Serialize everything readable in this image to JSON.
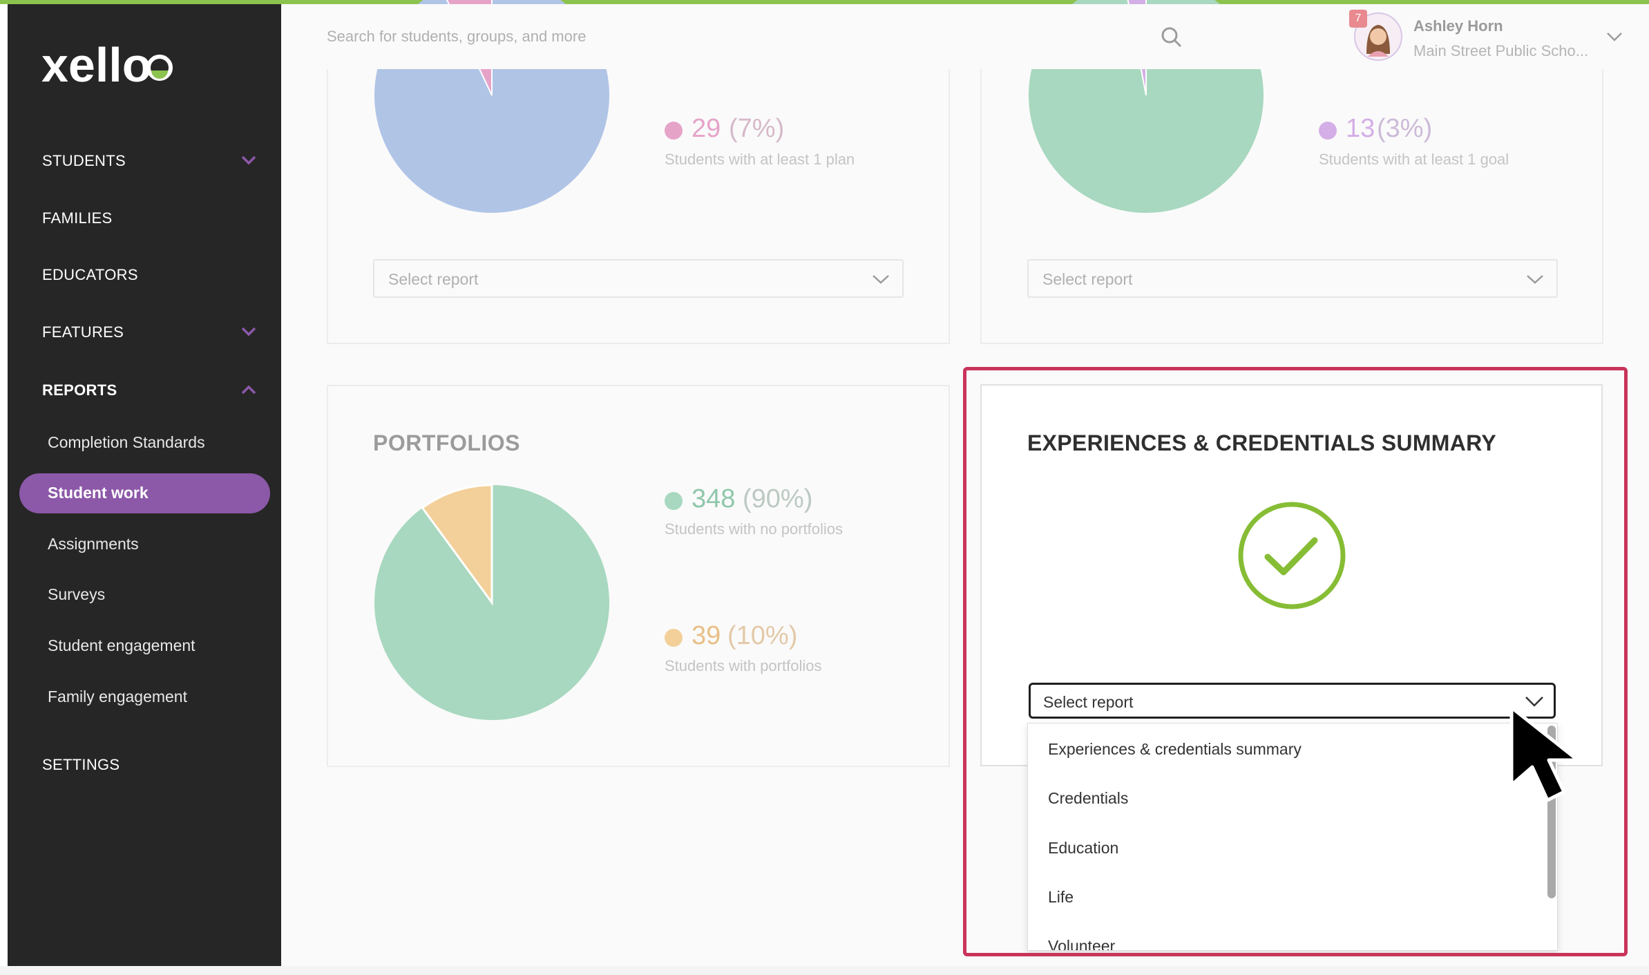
{
  "brand": {
    "logo_text": "xello",
    "accent_color": "#8cc34f"
  },
  "sidebar": {
    "items": [
      {
        "label": "STUDENTS",
        "has_chevron": true,
        "chevron": "down"
      },
      {
        "label": "FAMILIES"
      },
      {
        "label": "EDUCATORS"
      },
      {
        "label": "FEATURES",
        "has_chevron": true,
        "chevron": "down"
      },
      {
        "label": "REPORTS",
        "has_chevron": true,
        "chevron": "up",
        "active": true
      }
    ],
    "report_subitems": [
      "Completion Standards",
      "Student work",
      "Assignments",
      "Surveys",
      "Student engagement",
      "Family engagement"
    ],
    "active_subitem": "Student work",
    "settings_label": "SETTINGS",
    "active_color": "#8c58a8"
  },
  "header": {
    "search_placeholder": "Search for students, groups, and more",
    "user": {
      "name": "Ashley Horn",
      "school": "Main Street Public Scho...",
      "notification_count": "7"
    }
  },
  "cards": {
    "plans": {
      "legend": [
        {
          "num": "29",
          "pct": "(7%)",
          "desc": "Students with at least 1 plan",
          "color": "#e6a3c8"
        }
      ],
      "select_label": "Select report"
    },
    "goals": {
      "legend": [
        {
          "num": "13",
          "pct": "(3%)",
          "desc": "Students with at least 1 goal",
          "color": "#d4aee6"
        }
      ],
      "select_label": "Select report"
    },
    "portfolios": {
      "title": "PORTFOLIOS",
      "legend": [
        {
          "num": "348",
          "pct": "(90%)",
          "desc": "Students with no portfolios",
          "color": "#a8d8bf"
        },
        {
          "num": "39",
          "pct": "(10%)",
          "desc": "Students with portfolios",
          "color": "#f3d09a"
        }
      ]
    },
    "experiences": {
      "title": "EXPERIENCES & CREDENTIALS SUMMARY",
      "select_label": "Select report",
      "dropdown_options": [
        "Experiences & credentials summary",
        "Credentials",
        "Education",
        "Life",
        "Volunteer"
      ],
      "check_color": "#86bd35"
    }
  },
  "chart_data": [
    {
      "type": "pie",
      "values": [
        93,
        7
      ],
      "colors": [
        "#b0c4e6",
        "#e6a3c8"
      ]
    },
    {
      "type": "pie",
      "values": [
        97,
        3
      ],
      "colors": [
        "#a8d8bf",
        "#d4aee6"
      ]
    },
    {
      "type": "pie",
      "categories": [
        "Students with no portfolios",
        "Students with portfolios"
      ],
      "values": [
        348,
        39
      ],
      "percent": [
        90,
        10
      ],
      "colors": [
        "#a8d8bf",
        "#f3d09a"
      ]
    }
  ],
  "icons": {
    "search": "search-icon",
    "chevron": "chevron-down-icon",
    "check": "check-circle-icon",
    "cursor": "mouse-pointer-icon"
  }
}
